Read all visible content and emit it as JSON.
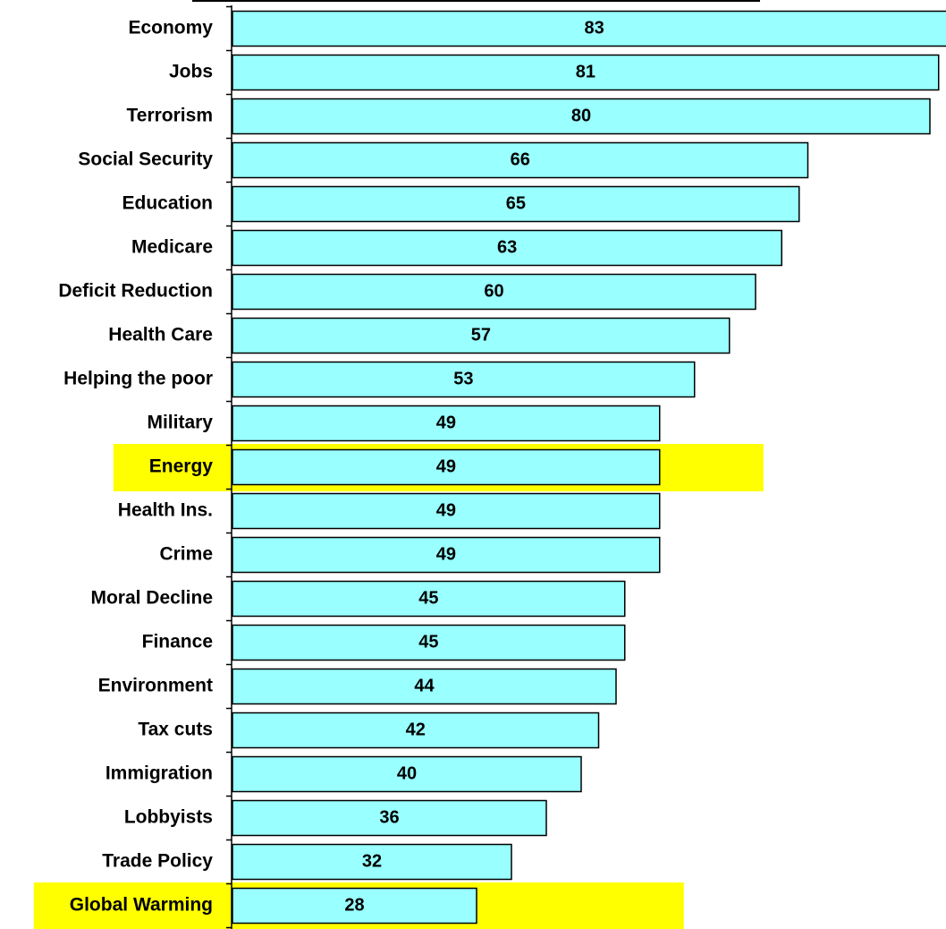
{
  "chart_data": {
    "type": "bar",
    "orientation": "horizontal",
    "categories": [
      "Economy",
      "Jobs",
      "Terrorism",
      "Social Security",
      "Education",
      "Medicare",
      "Deficit Reduction",
      "Health Care",
      "Helping the poor",
      "Military",
      "Energy",
      "Health Ins.",
      "Crime",
      "Moral Decline",
      "Finance",
      "Environment",
      "Tax cuts",
      "Immigration",
      "Lobbyists",
      "Trade Policy",
      "Global Warming"
    ],
    "values": [
      83,
      81,
      80,
      66,
      65,
      63,
      60,
      57,
      53,
      49,
      49,
      49,
      49,
      45,
      45,
      44,
      42,
      40,
      36,
      32,
      28
    ],
    "color": "#99ffff",
    "highlight": {
      "categories": [
        "Energy",
        "Global Warming"
      ],
      "color": "#ffff00"
    }
  }
}
